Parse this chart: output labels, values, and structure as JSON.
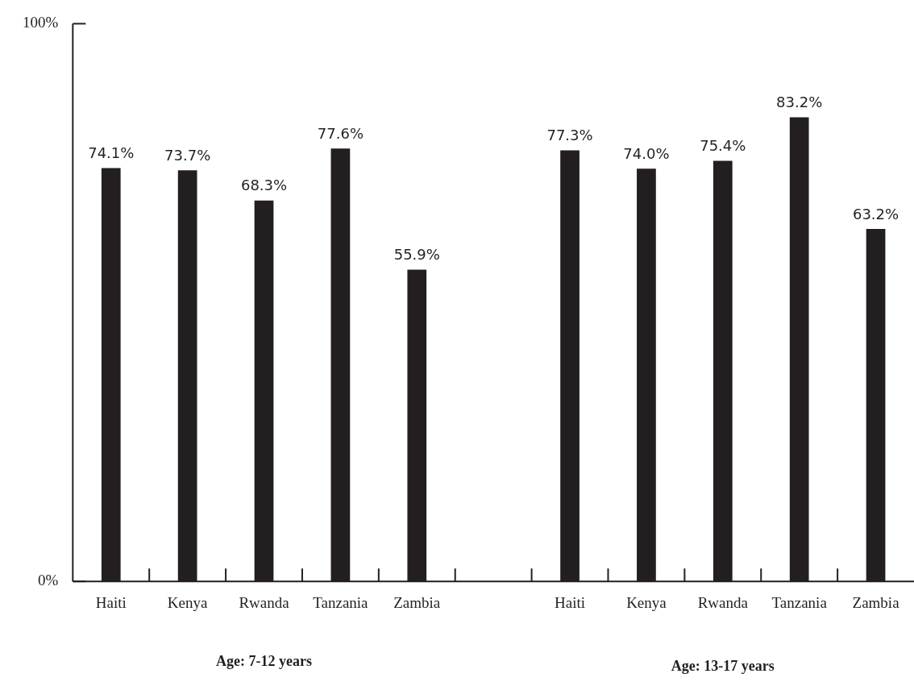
{
  "chart_data": {
    "type": "bar",
    "categories": [
      "Haiti",
      "Kenya",
      "Rwanda",
      "Tanzania",
      "Zambia",
      null,
      "Haiti",
      "Kenya",
      "Rwanda",
      "Tanzania",
      "Zambia"
    ],
    "values": [
      74.1,
      73.7,
      68.3,
      77.6,
      55.9,
      null,
      77.3,
      74.0,
      75.4,
      83.2,
      63.2
    ],
    "value_labels": [
      "74.1%",
      "73.7%",
      "68.3%",
      "77.6%",
      "55.9%",
      null,
      "77.3%",
      "74.0%",
      "75.4%",
      "83.2%",
      "63.2%"
    ],
    "color": "#231f20",
    "ylim": [
      0,
      100
    ],
    "yticks": [
      {
        "value": 0,
        "label": "0%"
      },
      {
        "value": 100,
        "label": "100%"
      }
    ],
    "annotations": [
      "Age: 7-12 years",
      "Age: 13-17 years"
    ],
    "grid": false,
    "legend": false
  }
}
